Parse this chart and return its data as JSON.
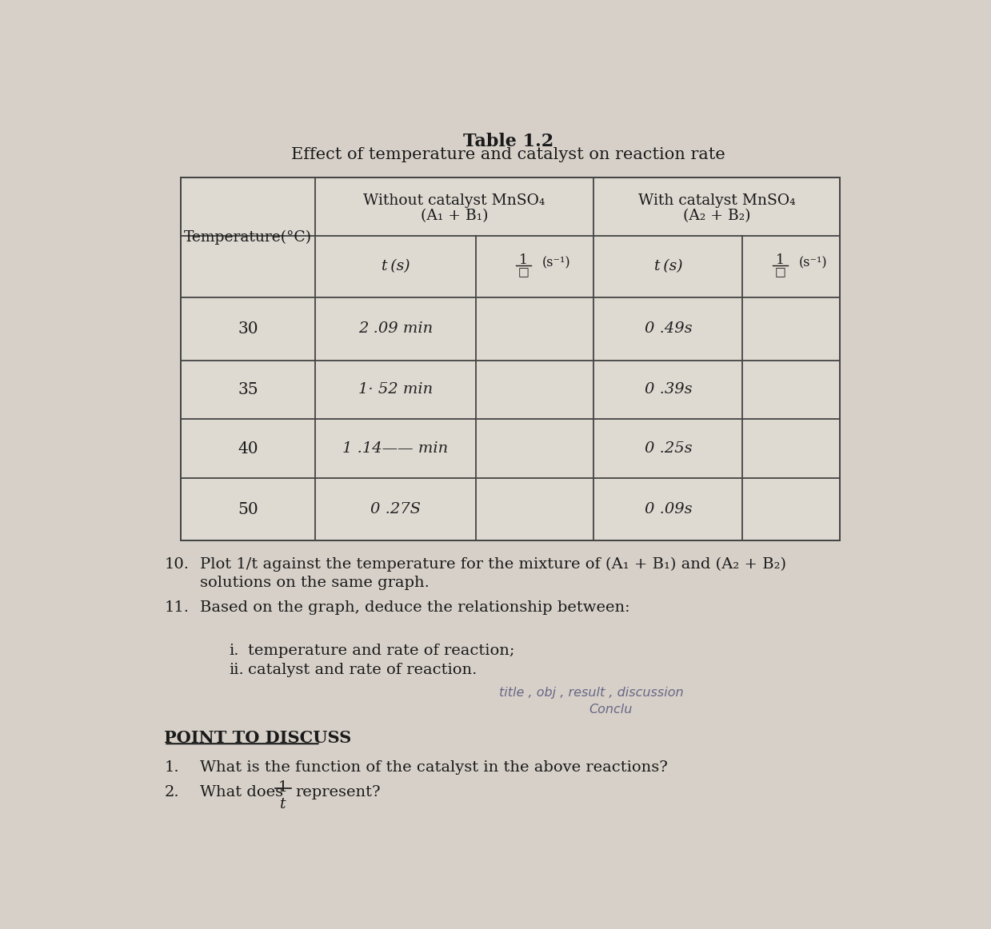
{
  "title_bold": "Table 1.2",
  "title_sub": "Effect of temperature and catalyst on reaction rate",
  "bg_color": "#d6d0c8",
  "table_fill": "#dedad2",
  "text_color": "#1a1a1a",
  "font_size_title": 15,
  "font_size_body": 13,
  "temperatures": [
    "30",
    "35",
    "40",
    "50"
  ],
  "t_without": [
    "2 .09 min",
    "1· 52 min",
    "1 .14—— min",
    "0 .27S"
  ],
  "t_with": [
    "0 .49s",
    "0 .39s",
    "0 .25s",
    "0 .09s"
  ],
  "item10_num": "10.",
  "item10_line1": "Plot 1/t against the temperature for the mixture of (A₁ + B₁) and (A₂ + B₂)",
  "item10_line2": "solutions on the same graph.",
  "item11_num": "11.",
  "item11_text": "Based on the graph, deduce the relationship between:",
  "item11i": "i.",
  "item11i_text": "temperature and rate of reaction;",
  "item11ii": "ii.",
  "item11ii_text": "catalyst and rate of reaction.",
  "handwritten1": "title , obj , result , discussion",
  "handwritten2": "Conclu",
  "ptd_header": "POINT TO DISCUSS",
  "ptd1_num": "1.",
  "ptd1_text": "What is the function of the catalyst in the above reactions?",
  "ptd2_num": "2.",
  "ptd2_text_pre": "What does",
  "ptd2_text_post": "represent?",
  "col_temp": "Temperature(°C)",
  "col_wo_line1": "Without catalyst MnSO₄",
  "col_wo_line2": "(A₁ + B₁)",
  "col_wi_line1": "With catalyst MnSO₄",
  "col_wi_line2": "(A₂ + B₂)",
  "sub_t": "t (s)",
  "sub_1t_num": "1",
  "sub_1t_den": "□",
  "sub_1t_unit": "(s⁻¹)"
}
